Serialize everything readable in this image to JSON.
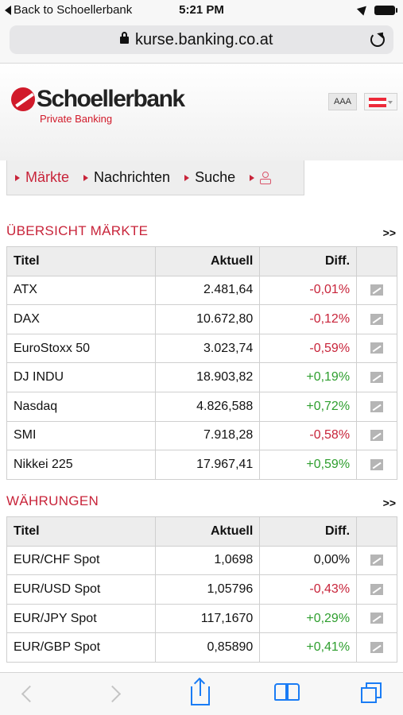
{
  "status_bar": {
    "back_label": "Back to Schoellerbank",
    "time": "5:21 PM"
  },
  "browser": {
    "url": "kurse.banking.co.at"
  },
  "header": {
    "logo_name": "Schoellerbank",
    "logo_sub": "Private Banking",
    "font_size_label": "AAA",
    "flag_colors": [
      "#ed2939",
      "#ffffff",
      "#ed2939"
    ]
  },
  "nav": {
    "items": [
      {
        "label": "Märkte",
        "active": true
      },
      {
        "label": "Nachrichten",
        "active": false
      },
      {
        "label": "Suche",
        "active": false
      }
    ]
  },
  "markets": {
    "title": "ÜBERSICHT MÄRKTE",
    "more": ">>",
    "columns": [
      "Titel",
      "Aktuell",
      "Diff."
    ],
    "rows": [
      {
        "title": "ATX",
        "current": "2.481,64",
        "diff": "-0,01%",
        "trend": "neg"
      },
      {
        "title": "DAX",
        "current": "10.672,80",
        "diff": "-0,12%",
        "trend": "neg"
      },
      {
        "title": "EuroStoxx 50",
        "current": "3.023,74",
        "diff": "-0,59%",
        "trend": "neg"
      },
      {
        "title": "DJ INDU",
        "current": "18.903,82",
        "diff": "+0,19%",
        "trend": "pos"
      },
      {
        "title": "Nasdaq",
        "current": "4.826,588",
        "diff": "+0,72%",
        "trend": "pos"
      },
      {
        "title": "SMI",
        "current": "7.918,28",
        "diff": "-0,58%",
        "trend": "neg"
      },
      {
        "title": "Nikkei 225",
        "current": "17.967,41",
        "diff": "+0,59%",
        "trend": "pos"
      }
    ]
  },
  "currencies": {
    "title": "WÄHRUNGEN",
    "more": ">>",
    "columns": [
      "Titel",
      "Aktuell",
      "Diff."
    ],
    "rows": [
      {
        "title": "EUR/CHF Spot",
        "current": "1,0698",
        "diff": "0,00%",
        "trend": "neu"
      },
      {
        "title": "EUR/USD Spot",
        "current": "1,05796",
        "diff": "-0,43%",
        "trend": "neg"
      },
      {
        "title": "EUR/JPY Spot",
        "current": "117,1670",
        "diff": "+0,29%",
        "trend": "pos"
      },
      {
        "title": "EUR/GBP Spot",
        "current": "0,85890",
        "diff": "+0,41%",
        "trend": "pos"
      }
    ]
  },
  "colors": {
    "accent": "#c8243a",
    "positive": "#2e9e2e",
    "negative": "#c8243a",
    "ios_blue": "#1a7cf5"
  }
}
